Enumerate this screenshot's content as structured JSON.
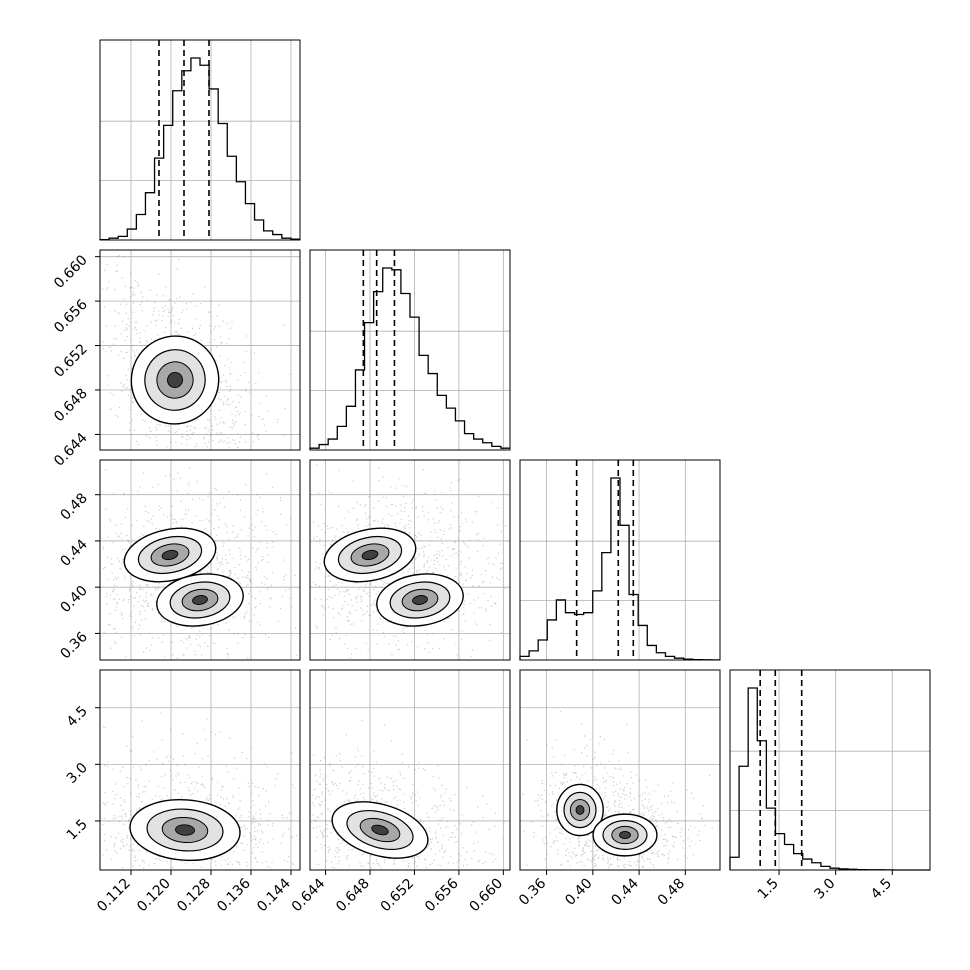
{
  "chart_data": {
    "type": "corner",
    "parameters": [
      {
        "ticks": [
          "0.112",
          "0.120",
          "0.128",
          "0.136",
          "0.144"
        ],
        "range": [
          0.1058,
          0.1458
        ]
      },
      {
        "ticks": [
          "0.644",
          "0.648",
          "0.652",
          "0.656",
          "0.660"
        ],
        "range": [
          0.6426,
          0.6606
        ]
      },
      {
        "ticks": [
          "0.36",
          "0.40",
          "0.44",
          "0.48"
        ],
        "range": [
          0.337,
          0.51
        ]
      },
      {
        "ticks": [
          "1.5",
          "3.0",
          "4.5"
        ],
        "range": [
          0.2,
          5.5
        ]
      }
    ],
    "quantile_lines": [
      [
        0.1176,
        0.1226,
        0.1276
      ],
      [
        0.6474,
        0.6486,
        0.6502
      ],
      [
        0.386,
        0.422,
        0.435
      ],
      [
        1.0,
        1.4,
        2.1
      ]
    ],
    "histograms": [
      [
        0.2,
        1,
        2,
        6,
        14,
        26,
        45,
        63,
        82,
        93,
        100,
        96,
        83,
        64,
        46,
        32,
        20,
        11,
        5,
        3,
        1,
        0.5
      ],
      [
        1,
        3,
        6,
        13,
        24,
        44,
        70,
        87,
        100,
        99,
        86,
        73,
        52,
        42,
        30,
        23,
        16,
        9,
        6,
        4,
        2,
        1
      ],
      [
        2,
        5,
        11,
        22,
        33,
        26,
        25,
        26,
        38,
        59,
        100,
        74,
        36,
        19,
        8,
        4,
        2,
        1,
        0.5,
        0.2,
        0.1,
        0.05
      ],
      [
        7,
        57,
        100,
        71,
        34,
        20,
        14,
        9,
        6,
        4,
        2,
        1,
        0.6,
        0.4,
        0.2,
        0.1,
        0.1,
        0.05,
        0.02,
        0.01,
        0.01,
        0.01
      ]
    ],
    "grid": true,
    "quantile_line_style": "dashed",
    "contours": "filled density with line contours"
  }
}
